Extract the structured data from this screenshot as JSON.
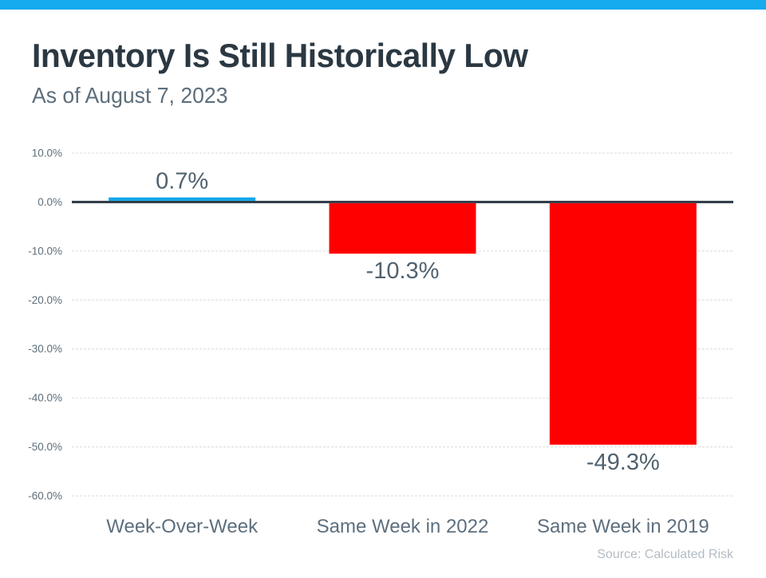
{
  "header": {
    "title": "Inventory Is Still Historically Low",
    "subtitle": "As of August 7, 2023"
  },
  "source_note": "Source: Calculated Risk",
  "colors": {
    "header_strip": "#16aaee",
    "positive_bar": "#14a7e8",
    "negative_bar": "#ff0000",
    "zero_line": "#2b3844",
    "gridline": "#d7dbde",
    "tick_label": "#5d6e7a",
    "value_label": "#51626f",
    "category_label": "#5d6f7e",
    "source_label": "#b2bcc4"
  },
  "chart_data": {
    "type": "bar",
    "title": "Inventory Is Still Historically Low",
    "subtitle": "As of August 7, 2023",
    "categories": [
      "Week-Over-Week",
      "Same Week in 2022",
      "Same Week in 2019"
    ],
    "values": [
      0.7,
      -10.3,
      -49.3
    ],
    "value_labels": [
      "0.7%",
      "-10.3%",
      "-49.3%"
    ],
    "xlabel": "",
    "ylabel": "",
    "ylim": [
      -60,
      10
    ],
    "yticks": [
      10,
      0,
      -10,
      -20,
      -30,
      -40,
      -50,
      -60
    ],
    "ytick_labels": [
      "10.0%",
      "0.0%",
      "-10.0%",
      "-20.0%",
      "-30.0%",
      "-40.0%",
      "-50.0%",
      "-60.0%"
    ],
    "grid": "horizontal-dashed",
    "legend": "none",
    "annotation": "Source: Calculated Risk"
  }
}
